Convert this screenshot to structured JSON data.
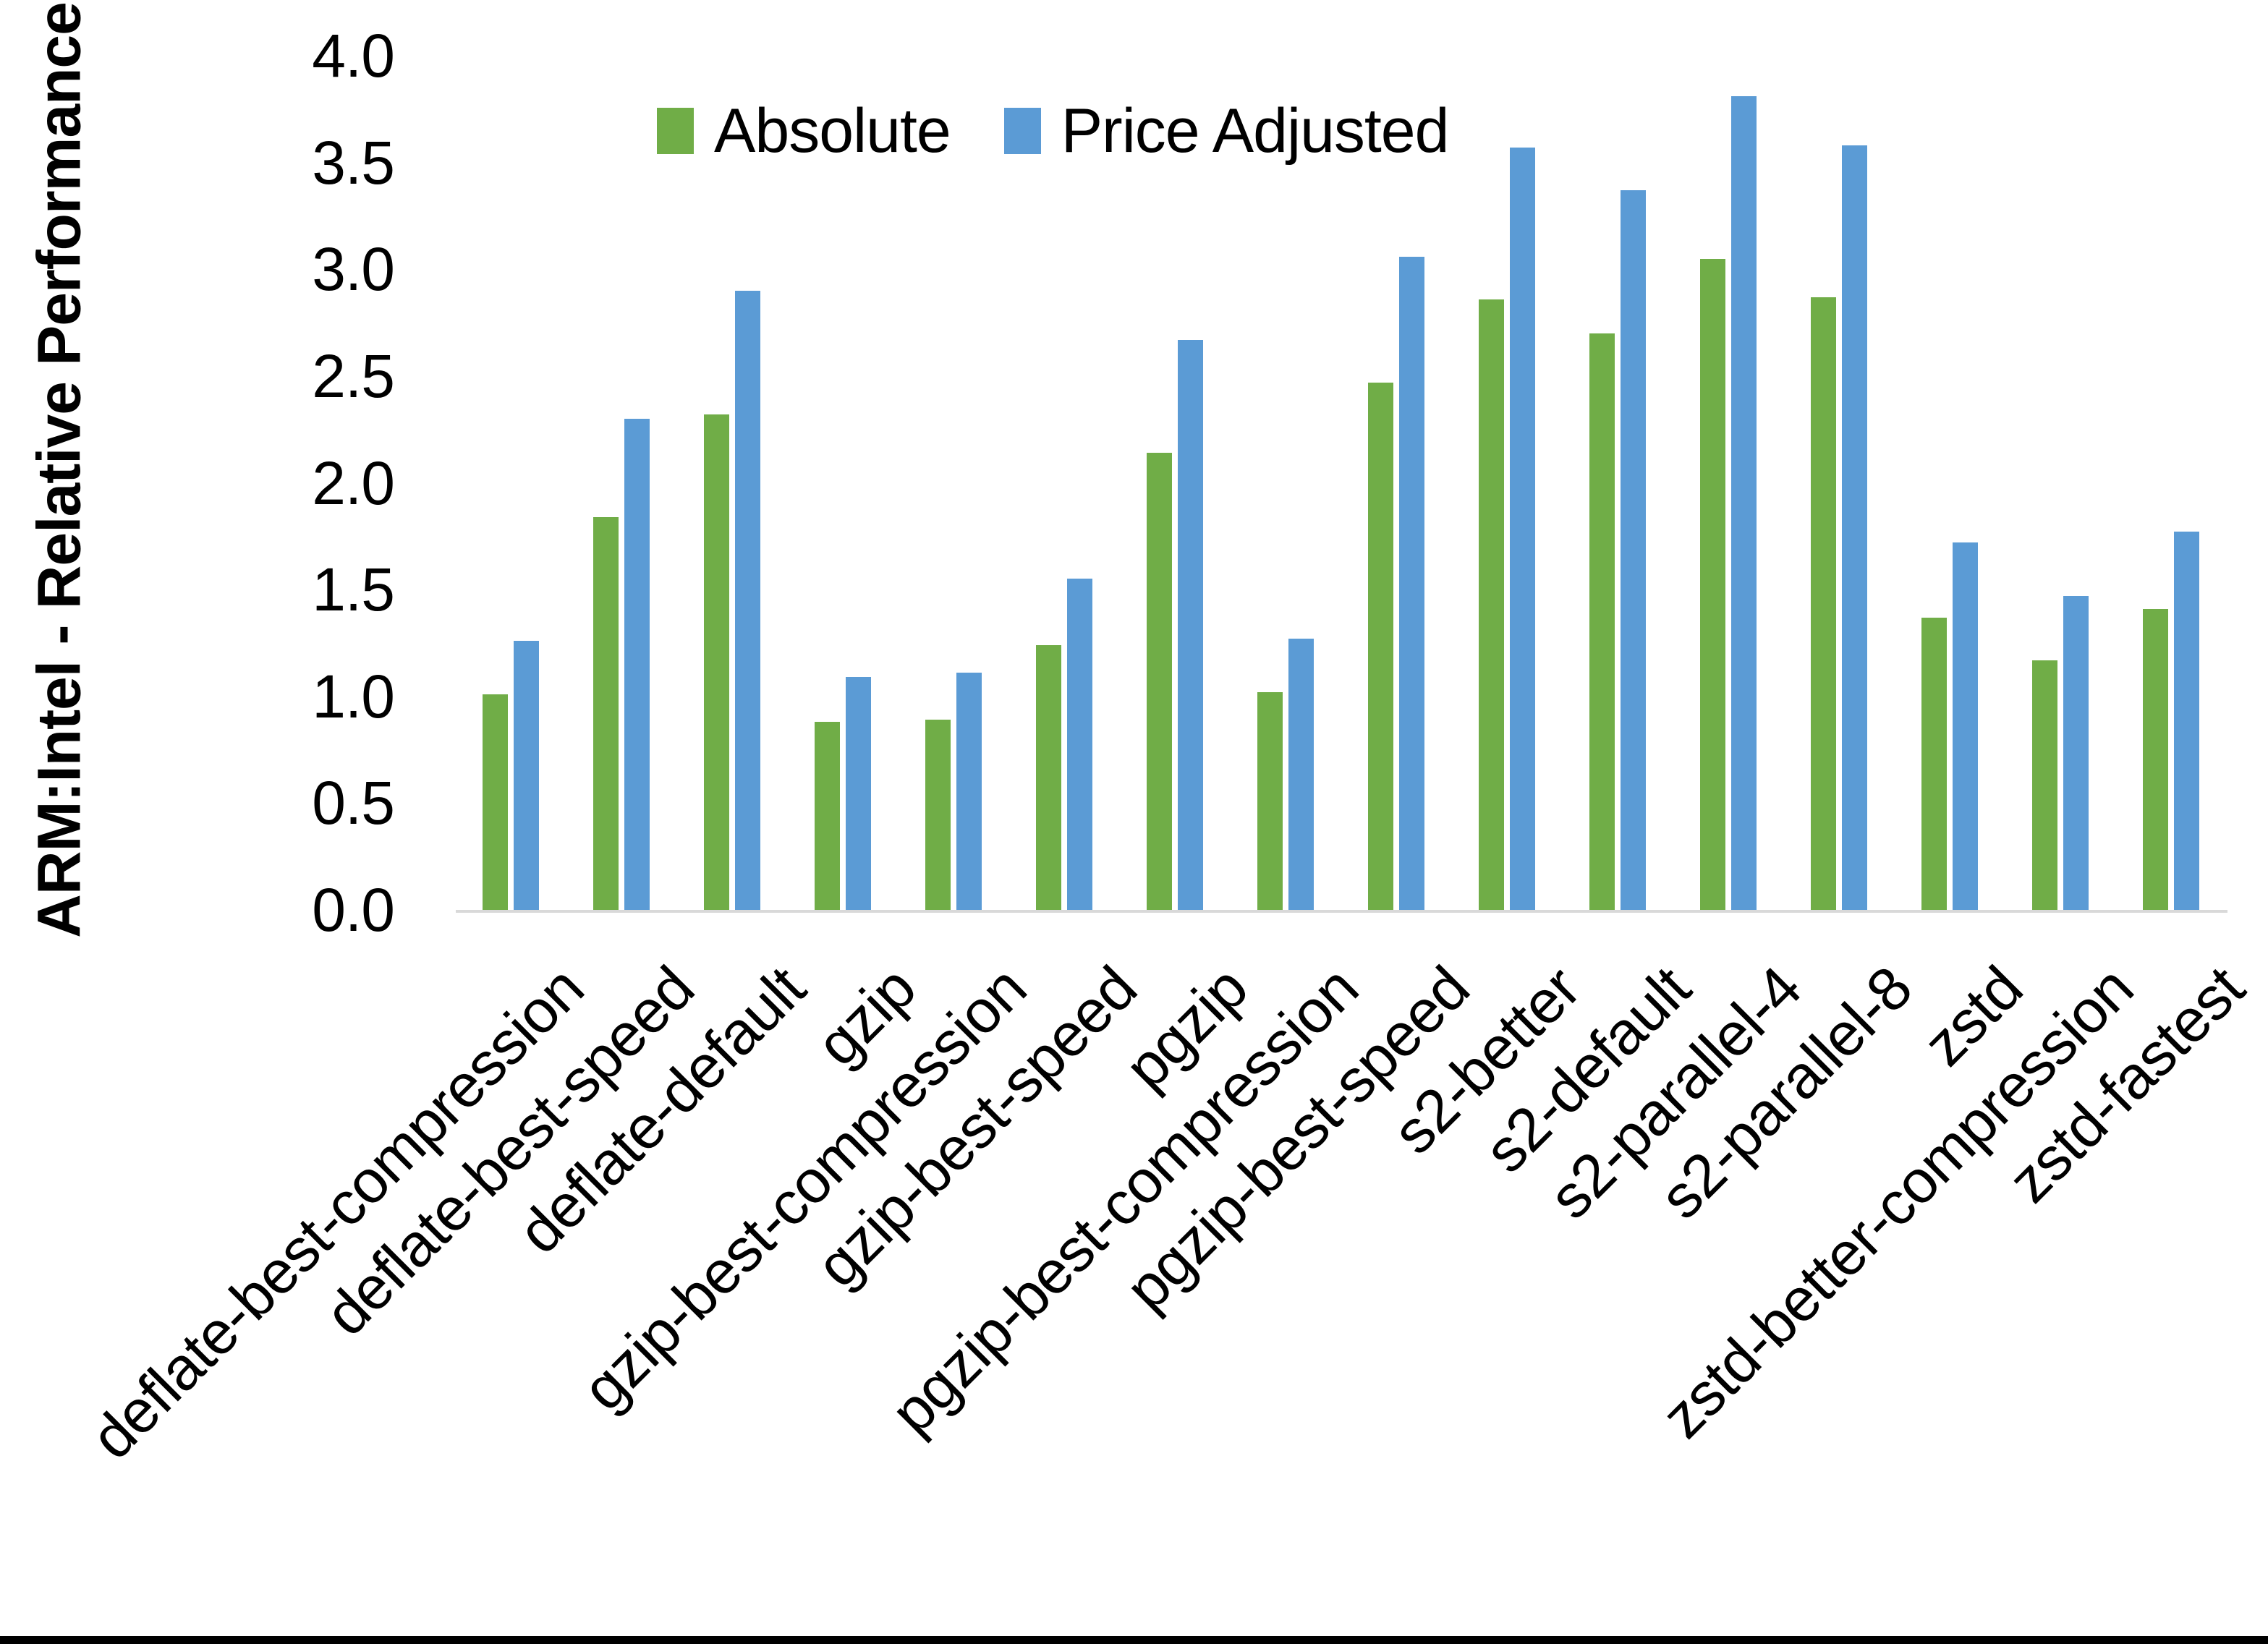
{
  "chart_data": {
    "type": "bar",
    "title": "",
    "ylabel": "ARM:Intel - Relative Performance",
    "xlabel": "",
    "ylim": [
      0.0,
      4.0
    ],
    "ytick_step": 0.5,
    "ytick_labels": [
      "4.0",
      "3.5",
      "3.0",
      "2.5",
      "2.0",
      "1.5",
      "1.0",
      "0.5",
      "0.0"
    ],
    "grid": false,
    "legend_position": "top-center",
    "categories": [
      "deflate-best-compression",
      "deflate-best-speed",
      "deflate-default",
      "gzip",
      "gzip-best-compression",
      "gzip-best-speed",
      "pgzip",
      "pgzip-best-compression",
      "pgzip-best-speed",
      "s2-better",
      "s2-default",
      "s2-parallel-4",
      "s2-parallel-8",
      "zstd",
      "zstd-better-compression",
      "zstd-fastest"
    ],
    "series": [
      {
        "name": "Absolute",
        "color": "#70AD47",
        "values": [
          1.01,
          1.84,
          2.32,
          0.88,
          0.89,
          1.24,
          2.14,
          1.02,
          2.47,
          2.86,
          2.7,
          3.05,
          2.87,
          1.37,
          1.17,
          1.41
        ]
      },
      {
        "name": "Price Adjusted",
        "color": "#5B9BD5",
        "values": [
          1.26,
          2.3,
          2.9,
          1.09,
          1.11,
          1.55,
          2.67,
          1.27,
          3.06,
          3.57,
          3.37,
          3.81,
          3.58,
          1.72,
          1.47,
          1.77
        ]
      }
    ]
  },
  "colors": {
    "background": "#FFFFFF",
    "axis_line": "#D9D9D9",
    "text": "#000000",
    "bottom_bar": "#000000"
  }
}
